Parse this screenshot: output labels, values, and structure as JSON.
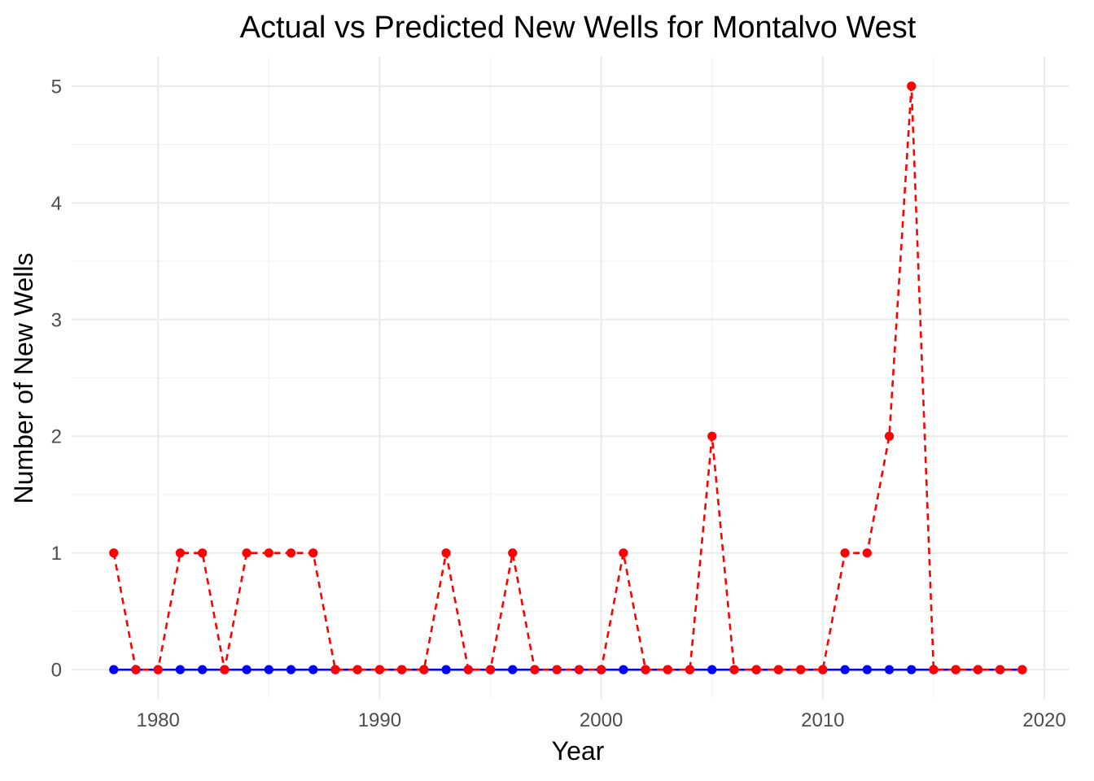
{
  "chart_data": {
    "type": "line",
    "title": "Actual vs Predicted New Wells for Montalvo  West",
    "xlabel": "Year",
    "ylabel": "Number of New Wells",
    "xlim": [
      1976.1,
      2021.1
    ],
    "ylim": [
      -0.25,
      5.25
    ],
    "x_ticks": [
      1980,
      1990,
      2000,
      2010,
      2020
    ],
    "y_ticks": [
      0,
      1,
      2,
      3,
      4,
      5
    ],
    "x_tick_labels": [
      "1980",
      "1990",
      "2000",
      "2010",
      "2020"
    ],
    "y_tick_labels": [
      "0",
      "1",
      "2",
      "3",
      "4",
      "5"
    ],
    "grid": true,
    "legend": "none",
    "x": [
      1978,
      1979,
      1980,
      1981,
      1982,
      1983,
      1984,
      1985,
      1986,
      1987,
      1988,
      1989,
      1990,
      1991,
      1992,
      1993,
      1994,
      1995,
      1996,
      1997,
      1998,
      1999,
      2000,
      2001,
      2002,
      2003,
      2004,
      2005,
      2006,
      2007,
      2008,
      2009,
      2010,
      2011,
      2012,
      2013,
      2014,
      2015,
      2016,
      2017,
      2018,
      2019
    ],
    "series": [
      {
        "color": "#0000ff",
        "line_style": "solid",
        "values": [
          0,
          0,
          0,
          0,
          0,
          0,
          0,
          0,
          0,
          0,
          0,
          0,
          0,
          0,
          0,
          0,
          0,
          0,
          0,
          0,
          0,
          0,
          0,
          0,
          0,
          0,
          0,
          0,
          0,
          0,
          0,
          0,
          0,
          0,
          0,
          0,
          0,
          0,
          0,
          0,
          0,
          0
        ]
      },
      {
        "color": "#ff0000",
        "line_style": "dashed",
        "values": [
          1,
          0,
          0,
          1,
          1,
          0,
          1,
          1,
          1,
          1,
          0,
          0,
          0,
          0,
          0,
          1,
          0,
          0,
          1,
          0,
          0,
          0,
          0,
          1,
          0,
          0,
          0,
          2,
          0,
          0,
          0,
          0,
          0,
          1,
          1,
          2,
          5,
          0,
          0,
          0,
          0,
          0
        ]
      }
    ]
  }
}
